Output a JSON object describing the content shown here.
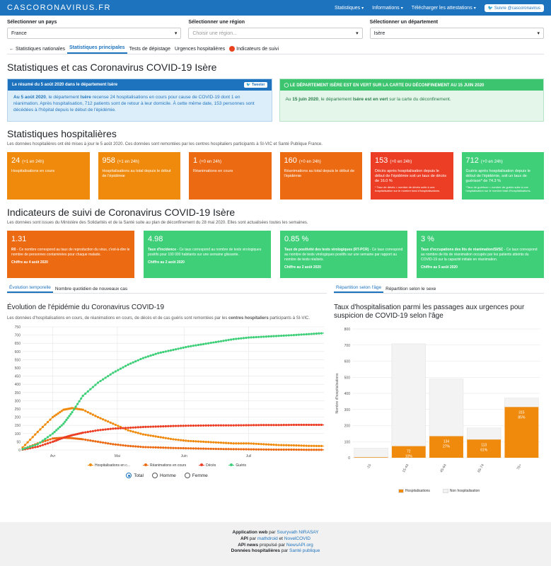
{
  "navbar": {
    "brand": "CASCORONAVIRUS.FR",
    "items": [
      "Statistiques",
      "Informations",
      "Télécharger les attestations"
    ],
    "twitter": "Suivre @cascoronavirus"
  },
  "selectors": [
    {
      "label": "Sélectionner un pays",
      "value": "France",
      "placeholder": ""
    },
    {
      "label": "Sélectionner une région",
      "value": "",
      "placeholder": "Choisir une région..."
    },
    {
      "label": "Sélectionner un département",
      "value": "Isère",
      "placeholder": ""
    }
  ],
  "tabs": [
    "Statistiques nationales",
    "Statistiques principales",
    "Tests de dépistage",
    "Urgences hospitalières",
    "Indicateurs de suivi"
  ],
  "page_title": "Statistiques et cas Coronavirus COVID-19 Isère",
  "summary": {
    "head": "Le résumé du 5 août 2020 dans le département Isère",
    "tweet": "Tweeter",
    "p1_date": "Au 5 août 2020",
    "p1_a": ", le département ",
    "p1_dep": "Isère",
    "p1_b": " recense 24 hospitalisations en cours pour cause de COVID-19 dont 1 en réanimation. Après hospitalisation, 712 patients sont de retour à leur domicile. À cette même date, 153 personnes sont décédées à l'hôpital depuis le début de l'épidémie."
  },
  "deconfinement": {
    "head": "LE DÉPARTEMENT ISÈRE EST EN VERT SUR LA CARTE DU DÉCONFINEMENT AU 15 JUIN 2020",
    "body_a": "Au ",
    "body_date": "15 juin 2020",
    "body_b": ", le département ",
    "body_dep": "Isère est en vert",
    "body_c": " sur la carte du déconfinement."
  },
  "hosp": {
    "title": "Statistiques hospitalières",
    "lead": "Les données hospitalières ont été mises à jour le 5 août 2020. Ces données sont remontées par les centres hospitaliers participants à SI-VIC et Santé Publique France.",
    "cards": [
      {
        "num": "24",
        "delta": "(+1 en 24h)",
        "desc": "Hospitalisations en cours",
        "small": "",
        "color": "#f08a0c"
      },
      {
        "num": "958",
        "delta": "(+1 en 24h)",
        "desc": "Hospitalisations au total depuis le début de l'épidémie",
        "small": "",
        "color": "#f08a0c"
      },
      {
        "num": "1",
        "delta": "(+0 en 24h)",
        "desc": "Réanimations en cours",
        "small": "",
        "color": "#ec6a12"
      },
      {
        "num": "160",
        "delta": "(+0 en 24h)",
        "desc": "Réanimations au total depuis le début de l'épidémie",
        "small": "",
        "color": "#ec6a12"
      },
      {
        "num": "153",
        "delta": "(+0 en 24h)",
        "desc": "Décès après hospitalisation depuis le début de l'épidémie soit un taux de décès de 16.0 %",
        "small": "* Taux de décès = nombre de décès suite à une hospitalisation sur le nombre total d'hospitalisations.",
        "color": "#ec3e24"
      },
      {
        "num": "712",
        "delta": "(+0 en 24h)",
        "desc": "Guéris après hospitalisation depuis le début de l'épidémie, soit un taux de guérison* de 74.3 %",
        "small": "*Taux de guérison = nombre de guéris suite à une hospitalisation sur le nombre total d'hospitalisations.",
        "color": "#3ecf78"
      }
    ]
  },
  "indic": {
    "title": "Indicateurs de suivi de Coronavirus COVID-19 Isère",
    "lead": "Les données sont issues du Ministère des Solidarités et de la Santé suite au plan de déconfinement du 28 mai 2020. Elles sont actualisées toutes les semaines.",
    "cards": [
      {
        "num": "1.31",
        "label": "R0",
        "desc": " - Ce nombre correspond au taux de reproduction du virus, c'est-à-dire le nombre de personnes contaminées pour chaque malade.",
        "as_of": "Chiffre au 4 août 2020",
        "color": "#ec6a12"
      },
      {
        "num": "4.98",
        "label": "Taux d'incidence",
        "desc": " - Ce taux correspond au nombre de tests virologiques positifs pour 100 000 habitants sur une semaine glissante.",
        "as_of": "Chiffre au 2 août 2020",
        "color": "#3ecf78"
      },
      {
        "num": "0.85 %",
        "label": "Taux de positivité des tests virologiques (RT-PCR)",
        "desc": " - Ce taux correspond au nombre de tests virologiques positifs sur une semaine par rapport au nombre de tests réalisés.",
        "as_of": "Chiffre au 2 août 2020",
        "color": "#3ecf78"
      },
      {
        "num": "3 %",
        "label": "Taux d'occupations des lits de réanimation/SI/SC",
        "desc": " - Ce taux correspond au nombre de lits de réanimation occupés par les patients atteints du COVID-19 sur la capacité initiale en réanimation.",
        "as_of": "Chiffre au 5 août 2020",
        "color": "#3ecf78"
      }
    ]
  },
  "left_tabs": [
    "Évolution temporelle",
    "Nombre quotidien de nouveaux cas"
  ],
  "right_tabs": [
    "Répartition selon l'âge",
    "Répartition selon le sexe"
  ],
  "evolution": {
    "title": "Évolution de l'épidémie du Coronavirus COVID-19",
    "desc_a": "Les données d'hospitalisations en cours, de réanimations en cours, de décès et de cas guéris sont remontées par les ",
    "desc_b": "centres hospitaliers",
    "desc_c": " participants à SI-VIC."
  },
  "age": {
    "title": "Taux d'hospitalisation parmi les passages aux urgences pour suspicion de COVID-19 selon l'âge"
  },
  "radios": [
    "Total",
    "Homme",
    "Femme"
  ],
  "colors": {
    "hosp": "#f08a0c",
    "rea": "#ec6a12",
    "deces": "#ec3e24",
    "gueris": "#3ecf78",
    "brand": "#1e73be"
  },
  "chart_data": [
    {
      "type": "line",
      "x": [
        "2020-03-18",
        "2020-03-25",
        "2020-04-01",
        "2020-04-06",
        "2020-04-10",
        "2020-04-15",
        "2020-04-22",
        "2020-04-29",
        "2020-05-06",
        "2020-05-13",
        "2020-05-20",
        "2020-05-27",
        "2020-06-03",
        "2020-06-10",
        "2020-06-17",
        "2020-06-24",
        "2020-07-01",
        "2020-07-08",
        "2020-07-15",
        "2020-07-22",
        "2020-07-29",
        "2020-08-05"
      ],
      "series": [
        {
          "name": "Hospitalisations en c...",
          "values": [
            15,
            110,
            200,
            245,
            255,
            245,
            200,
            160,
            120,
            95,
            80,
            65,
            55,
            50,
            45,
            40,
            40,
            35,
            30,
            28,
            25,
            24
          ]
        },
        {
          "name": "Réanimations en cours",
          "values": [
            5,
            40,
            70,
            75,
            72,
            65,
            50,
            35,
            25,
            18,
            15,
            12,
            10,
            8,
            6,
            5,
            4,
            3,
            2,
            2,
            1,
            1
          ]
        },
        {
          "name": "Décès",
          "values": [
            2,
            20,
            50,
            75,
            90,
            105,
            120,
            130,
            135,
            140,
            143,
            146,
            148,
            149,
            150,
            150,
            151,
            152,
            152,
            153,
            153,
            153
          ]
        },
        {
          "name": "Guéris",
          "values": [
            5,
            35,
            100,
            160,
            230,
            330,
            410,
            470,
            520,
            560,
            590,
            610,
            630,
            645,
            660,
            675,
            685,
            690,
            695,
            700,
            706,
            712
          ]
        }
      ],
      "xticks": [
        "Avr",
        "Mai",
        "Juin",
        "Juil"
      ],
      "yticks": [
        0,
        50,
        100,
        150,
        200,
        250,
        300,
        350,
        400,
        450,
        500,
        550,
        600,
        650,
        700,
        750
      ],
      "ylim": [
        0,
        750
      ],
      "grid": true,
      "legend": "bottom"
    },
    {
      "type": "bar",
      "stacked": true,
      "categories": [
        "-15",
        "15-44",
        "45-64",
        "65-74",
        "75+"
      ],
      "series": [
        {
          "name": "Hospitalisations",
          "values": [
            3,
            72,
            134,
            113,
            315
          ],
          "labels": [
            "",
            "72\n10%",
            "134\n27%",
            "113\n61%",
            "315\n85%"
          ]
        },
        {
          "name": "Non hospitalisation",
          "values": [
            57,
            636,
            356,
            72,
            56
          ]
        }
      ],
      "ylabel": "Nombre d'hospitalisations",
      "yticks": [
        0,
        100,
        200,
        300,
        400,
        500,
        600,
        700,
        800
      ],
      "ylim": [
        0,
        800
      ],
      "legend": "bottom"
    }
  ],
  "footer": {
    "l1_b": "Application web",
    "l1_p": " par ",
    "l1_a": "Souryvath NIRASAY",
    "l2_b": "API",
    "l2_p": " par ",
    "l2_a1": "mathdroid",
    "l2_and": " et ",
    "l2_a2": "NovelCOVID",
    "l3_b": "API news",
    "l3_p": " propulsé par ",
    "l3_a": "NewsAPI.org",
    "l4_b": "Données hospitalières",
    "l4_p": " par ",
    "l4_a": "Santé publique"
  }
}
